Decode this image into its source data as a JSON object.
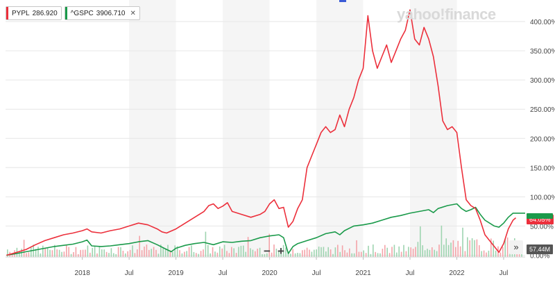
{
  "watermark": "yahoo!finance",
  "legend": [
    {
      "symbol": "PYPL",
      "value": "286.920",
      "color": "#ec2f3b",
      "removable": false
    },
    {
      "symbol": "^GSPC",
      "value": "3906.710",
      "color": "#1a9a4a",
      "removable": true
    }
  ],
  "controls": {
    "zoom_out": "−",
    "zoom_in": "+",
    "more": "»"
  },
  "badges": {
    "pypl_change": "64.05%",
    "gspc_marker": "",
    "volume": "57.44M"
  },
  "chart_data": {
    "type": "line",
    "ylabel": "",
    "yticks": [
      "0.00%",
      "50.00%",
      "100.00%",
      "150.00%",
      "200.00%",
      "250.00%",
      "300.00%",
      "350.00%",
      "400.00%"
    ],
    "ylim": [
      -3,
      425
    ],
    "xlim": [
      2017.18,
      2022.73
    ],
    "xticks": [
      {
        "x": 2018.0,
        "label": "2018"
      },
      {
        "x": 2018.5,
        "label": "Jul"
      },
      {
        "x": 2019.0,
        "label": "2019"
      },
      {
        "x": 2019.5,
        "label": "Jul"
      },
      {
        "x": 2020.0,
        "label": "2020"
      },
      {
        "x": 2020.5,
        "label": "Jul"
      },
      {
        "x": 2021.0,
        "label": "2021"
      },
      {
        "x": 2021.5,
        "label": "Jul"
      },
      {
        "x": 2022.0,
        "label": "2022"
      },
      {
        "x": 2022.5,
        "label": "Jul"
      }
    ],
    "series": [
      {
        "name": "PYPL",
        "color": "#ec2f3b",
        "points": [
          [
            2017.19,
            0
          ],
          [
            2017.3,
            5
          ],
          [
            2017.4,
            10
          ],
          [
            2017.5,
            18
          ],
          [
            2017.6,
            25
          ],
          [
            2017.7,
            30
          ],
          [
            2017.8,
            35
          ],
          [
            2017.9,
            38
          ],
          [
            2018.0,
            42
          ],
          [
            2018.05,
            45
          ],
          [
            2018.1,
            40
          ],
          [
            2018.2,
            38
          ],
          [
            2018.3,
            42
          ],
          [
            2018.4,
            45
          ],
          [
            2018.5,
            50
          ],
          [
            2018.6,
            55
          ],
          [
            2018.7,
            52
          ],
          [
            2018.8,
            45
          ],
          [
            2018.85,
            40
          ],
          [
            2018.9,
            38
          ],
          [
            2019.0,
            45
          ],
          [
            2019.1,
            55
          ],
          [
            2019.2,
            65
          ],
          [
            2019.3,
            75
          ],
          [
            2019.35,
            85
          ],
          [
            2019.4,
            88
          ],
          [
            2019.45,
            80
          ],
          [
            2019.5,
            84
          ],
          [
            2019.55,
            90
          ],
          [
            2019.6,
            75
          ],
          [
            2019.7,
            70
          ],
          [
            2019.8,
            65
          ],
          [
            2019.9,
            70
          ],
          [
            2019.95,
            75
          ],
          [
            2020.0,
            88
          ],
          [
            2020.05,
            95
          ],
          [
            2020.1,
            80
          ],
          [
            2020.15,
            82
          ],
          [
            2020.2,
            48
          ],
          [
            2020.25,
            58
          ],
          [
            2020.3,
            80
          ],
          [
            2020.35,
            95
          ],
          [
            2020.4,
            150
          ],
          [
            2020.45,
            170
          ],
          [
            2020.5,
            190
          ],
          [
            2020.55,
            210
          ],
          [
            2020.6,
            220
          ],
          [
            2020.65,
            210
          ],
          [
            2020.7,
            215
          ],
          [
            2020.75,
            240
          ],
          [
            2020.8,
            220
          ],
          [
            2020.85,
            250
          ],
          [
            2020.9,
            270
          ],
          [
            2020.95,
            300
          ],
          [
            2021.0,
            320
          ],
          [
            2021.05,
            410
          ],
          [
            2021.1,
            350
          ],
          [
            2021.15,
            320
          ],
          [
            2021.2,
            340
          ],
          [
            2021.25,
            360
          ],
          [
            2021.3,
            330
          ],
          [
            2021.35,
            350
          ],
          [
            2021.4,
            370
          ],
          [
            2021.45,
            385
          ],
          [
            2021.5,
            420
          ],
          [
            2021.55,
            370
          ],
          [
            2021.6,
            360
          ],
          [
            2021.65,
            390
          ],
          [
            2021.7,
            370
          ],
          [
            2021.75,
            340
          ],
          [
            2021.8,
            290
          ],
          [
            2021.85,
            230
          ],
          [
            2021.9,
            215
          ],
          [
            2021.95,
            220
          ],
          [
            2022.0,
            210
          ],
          [
            2022.05,
            150
          ],
          [
            2022.1,
            95
          ],
          [
            2022.15,
            85
          ],
          [
            2022.2,
            80
          ],
          [
            2022.25,
            60
          ],
          [
            2022.3,
            35
          ],
          [
            2022.35,
            25
          ],
          [
            2022.4,
            15
          ],
          [
            2022.45,
            5
          ],
          [
            2022.5,
            20
          ],
          [
            2022.55,
            45
          ],
          [
            2022.6,
            60
          ],
          [
            2022.63,
            64
          ]
        ]
      },
      {
        "name": "^GSPC",
        "color": "#1a9a4a",
        "points": [
          [
            2017.19,
            0
          ],
          [
            2017.3,
            3
          ],
          [
            2017.4,
            6
          ],
          [
            2017.5,
            9
          ],
          [
            2017.6,
            12
          ],
          [
            2017.7,
            15
          ],
          [
            2017.8,
            17
          ],
          [
            2017.9,
            19
          ],
          [
            2018.0,
            23
          ],
          [
            2018.05,
            26
          ],
          [
            2018.1,
            16
          ],
          [
            2018.2,
            15
          ],
          [
            2018.3,
            16
          ],
          [
            2018.4,
            18
          ],
          [
            2018.5,
            20
          ],
          [
            2018.6,
            23
          ],
          [
            2018.7,
            25
          ],
          [
            2018.8,
            18
          ],
          [
            2018.9,
            10
          ],
          [
            2018.95,
            6
          ],
          [
            2019.0,
            12
          ],
          [
            2019.1,
            17
          ],
          [
            2019.2,
            20
          ],
          [
            2019.3,
            22
          ],
          [
            2019.4,
            18
          ],
          [
            2019.5,
            23
          ],
          [
            2019.6,
            22
          ],
          [
            2019.7,
            24
          ],
          [
            2019.8,
            25
          ],
          [
            2019.9,
            30
          ],
          [
            2020.0,
            33
          ],
          [
            2020.1,
            35
          ],
          [
            2020.15,
            30
          ],
          [
            2020.2,
            3
          ],
          [
            2020.25,
            15
          ],
          [
            2020.3,
            20
          ],
          [
            2020.4,
            25
          ],
          [
            2020.5,
            30
          ],
          [
            2020.6,
            37
          ],
          [
            2020.7,
            40
          ],
          [
            2020.75,
            35
          ],
          [
            2020.8,
            42
          ],
          [
            2020.9,
            50
          ],
          [
            2021.0,
            52
          ],
          [
            2021.1,
            55
          ],
          [
            2021.2,
            60
          ],
          [
            2021.3,
            65
          ],
          [
            2021.4,
            68
          ],
          [
            2021.5,
            72
          ],
          [
            2021.6,
            75
          ],
          [
            2021.7,
            78
          ],
          [
            2021.75,
            73
          ],
          [
            2021.8,
            80
          ],
          [
            2021.9,
            85
          ],
          [
            2022.0,
            88
          ],
          [
            2022.05,
            80
          ],
          [
            2022.1,
            75
          ],
          [
            2022.15,
            78
          ],
          [
            2022.2,
            82
          ],
          [
            2022.25,
            70
          ],
          [
            2022.3,
            60
          ],
          [
            2022.35,
            55
          ],
          [
            2022.4,
            50
          ],
          [
            2022.45,
            48
          ],
          [
            2022.5,
            55
          ],
          [
            2022.55,
            65
          ],
          [
            2022.6,
            72
          ],
          [
            2022.73,
            72
          ]
        ]
      }
    ]
  }
}
